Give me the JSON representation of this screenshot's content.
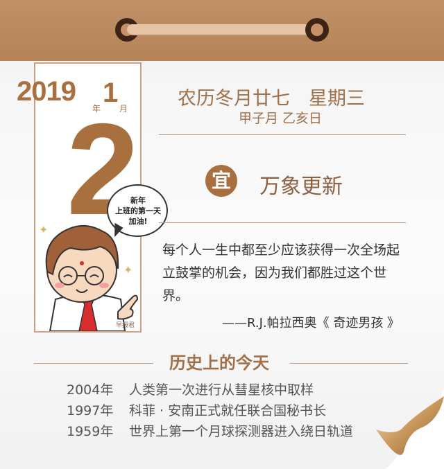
{
  "date": {
    "year": "2019",
    "year_unit": "年",
    "month": "1",
    "month_unit": "月",
    "day": "2"
  },
  "lunar": {
    "date_weekday": "农历冬月廿七　星期三",
    "ganzhi": "甲子月 乙亥日"
  },
  "yi": {
    "badge": "宜",
    "text": "万象更新"
  },
  "bubble": {
    "line1": "新年",
    "line2": "上班的第一天",
    "line3": "加油!"
  },
  "quote": {
    "text": "每个人一生中都至少应该获得一次全场起立鼓掌的机会，因为我们都胜过这个世界。",
    "source": "——R.J.帕拉西奥《 奇迹男孩 》"
  },
  "brand": "早报君",
  "history": {
    "title": "历史上的今天",
    "events": [
      {
        "year": "2004年",
        "text": "人类第一次进行从彗星核中取样"
      },
      {
        "year": "1997年",
        "text": "科菲 · 安南正式就任联合国秘书长"
      },
      {
        "year": "1959年",
        "text": "世界上第一个月球探测器进入绕日轨道"
      }
    ]
  },
  "colors": {
    "header": "#b8865b",
    "accent": "#a8703f",
    "ring": "#3c2316"
  }
}
